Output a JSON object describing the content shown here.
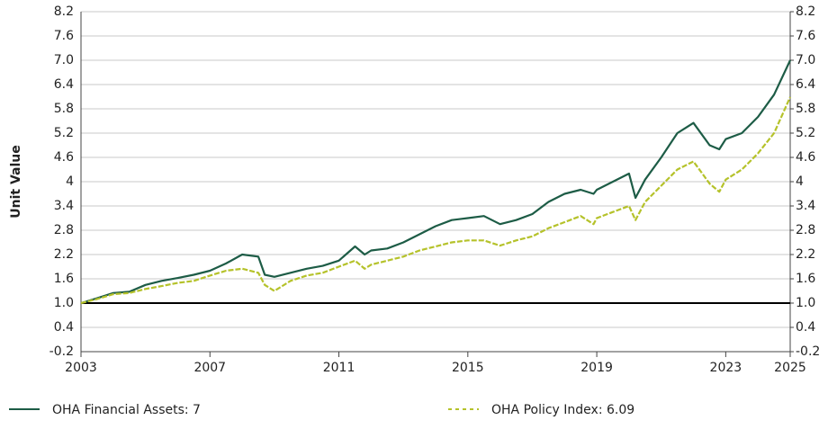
{
  "chart_data": {
    "type": "line",
    "y_label": "Unit Value",
    "x": [
      2003,
      2003.5,
      2004,
      2004.5,
      2005,
      2005.5,
      2006,
      2006.5,
      2007,
      2007.5,
      2008,
      2008.5,
      2008.7,
      2009,
      2009.5,
      2010,
      2010.5,
      2011,
      2011.5,
      2011.8,
      2012,
      2012.5,
      2013,
      2013.5,
      2014,
      2014.5,
      2015,
      2015.5,
      2016,
      2016.5,
      2017,
      2017.5,
      2018,
      2018.5,
      2018.9,
      2019,
      2019.5,
      2020,
      2020.2,
      2020.5,
      2021,
      2021.5,
      2022,
      2022.5,
      2022.8,
      2023,
      2023.5,
      2024,
      2024.5,
      2025
    ],
    "series": [
      {
        "name": "OHA Financial Assets: 7",
        "color": "#1d5c46",
        "dashed": false,
        "values": [
          1.0,
          1.12,
          1.25,
          1.28,
          1.45,
          1.55,
          1.62,
          1.7,
          1.8,
          1.98,
          2.2,
          2.15,
          1.7,
          1.65,
          1.75,
          1.85,
          1.92,
          2.05,
          2.4,
          2.2,
          2.3,
          2.35,
          2.5,
          2.7,
          2.9,
          3.05,
          3.1,
          3.15,
          2.95,
          3.05,
          3.2,
          3.5,
          3.7,
          3.8,
          3.7,
          3.8,
          4.0,
          4.2,
          3.6,
          4.05,
          4.6,
          5.2,
          5.45,
          4.9,
          4.8,
          5.05,
          5.2,
          5.6,
          6.15,
          7.0
        ]
      },
      {
        "name": "OHA Policy Index: 6.09",
        "color": "#b5c22a",
        "dashed": true,
        "values": [
          1.0,
          1.1,
          1.22,
          1.25,
          1.35,
          1.42,
          1.5,
          1.55,
          1.68,
          1.8,
          1.85,
          1.75,
          1.45,
          1.3,
          1.55,
          1.68,
          1.75,
          1.9,
          2.05,
          1.85,
          1.95,
          2.05,
          2.15,
          2.3,
          2.4,
          2.5,
          2.55,
          2.55,
          2.42,
          2.55,
          2.65,
          2.85,
          3.0,
          3.15,
          2.95,
          3.1,
          3.25,
          3.4,
          3.05,
          3.5,
          3.9,
          4.3,
          4.5,
          3.95,
          3.75,
          4.05,
          4.3,
          4.7,
          5.2,
          6.09
        ]
      }
    ],
    "xlim": [
      2003,
      2025
    ],
    "xticks": [
      2003,
      2007,
      2011,
      2015,
      2019,
      2023,
      2025
    ],
    "ylim": [
      -0.2,
      8.2
    ],
    "yticks": [
      -0.2,
      0.4,
      {
        "value": 1,
        "label": "1.0"
      },
      1.6,
      2.2,
      2.8,
      3.4,
      4.0,
      4.6,
      5.2,
      5.8,
      6.4,
      {
        "value": 7,
        "label": "7.0"
      },
      7.6,
      8.2
    ],
    "y2lim": [
      -0.2,
      8.2
    ],
    "y2ticks": [
      -0.2,
      0.4,
      {
        "value": 1,
        "label": "1.0"
      },
      1.6,
      2.2,
      2.8,
      3.4,
      4.0,
      4.6,
      5.2,
      5.8,
      6.4,
      {
        "value": 7,
        "label": "7.0"
      },
      7.6,
      8.2
    ],
    "baseline": 1,
    "grid": true
  }
}
